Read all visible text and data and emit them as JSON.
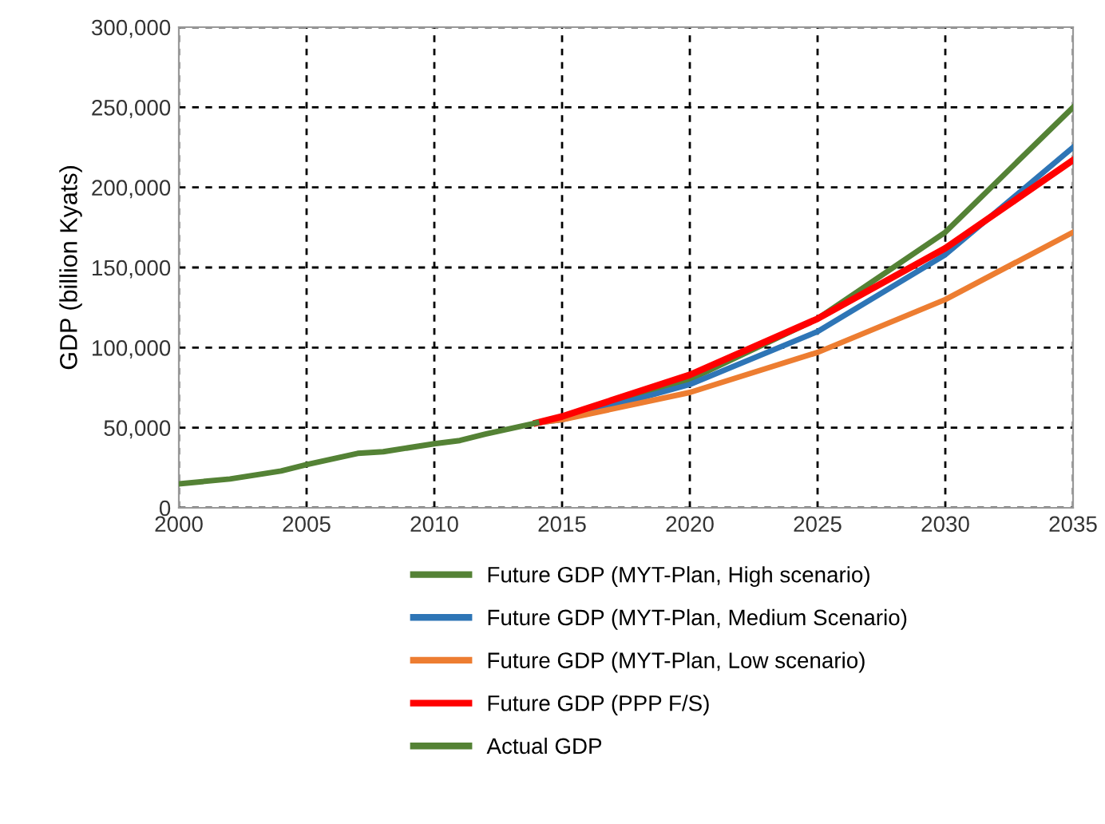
{
  "chart_data": {
    "type": "line",
    "ylabel": "GDP (billion Kyats)",
    "xlim": [
      2000,
      2035
    ],
    "xticks": [
      2000,
      2005,
      2010,
      2015,
      2020,
      2025,
      2030,
      2035
    ],
    "ylim": [
      0,
      300000
    ],
    "yticks": [
      {
        "value": 0,
        "label": "0"
      },
      {
        "value": 50000,
        "label": "50,000"
      },
      {
        "value": 100000,
        "label": "100,000"
      },
      {
        "value": 150000,
        "label": "150,000"
      },
      {
        "value": 200000,
        "label": "200,000"
      },
      {
        "value": 250000,
        "label": "250,000"
      },
      {
        "value": 300000,
        "label": "300,000"
      }
    ],
    "grid": true,
    "line_style": "solid",
    "marker": "none",
    "legend": "bottom",
    "series": [
      {
        "name": "Future GDP (MYT-Plan, High scenario)",
        "color": "#548235",
        "x": [
          2015,
          2020,
          2025,
          2030,
          2035
        ],
        "values": [
          56000,
          80000,
          118000,
          172000,
          250000
        ]
      },
      {
        "name": "Future GDP (MYT-Plan, Medium Scenario)",
        "color": "#2e75b6",
        "x": [
          2014,
          2015,
          2020,
          2025,
          2030,
          2035
        ],
        "values": [
          53000,
          55000,
          77000,
          110000,
          158000,
          225000
        ]
      },
      {
        "name": "Future GDP (MYT-Plan, Low scenario)",
        "color": "#ed7d31",
        "x": [
          2014,
          2015,
          2020,
          2025,
          2030,
          2035
        ],
        "values": [
          53000,
          55000,
          72000,
          97000,
          130000,
          172000
        ]
      },
      {
        "name": "Future GDP (PPP F/S)",
        "color": "#ff0000",
        "x": [
          2014,
          2015,
          2020,
          2025,
          2030,
          2035
        ],
        "values": [
          53000,
          57000,
          83000,
          118000,
          162000,
          217000
        ]
      },
      {
        "name": "Actual GDP",
        "color": "#548235",
        "x": [
          2000,
          2002,
          2004,
          2005,
          2007,
          2008,
          2010,
          2011,
          2012,
          2014
        ],
        "values": [
          15000,
          18000,
          23000,
          27000,
          34000,
          35000,
          40000,
          42000,
          46000,
          53000
        ]
      }
    ]
  }
}
